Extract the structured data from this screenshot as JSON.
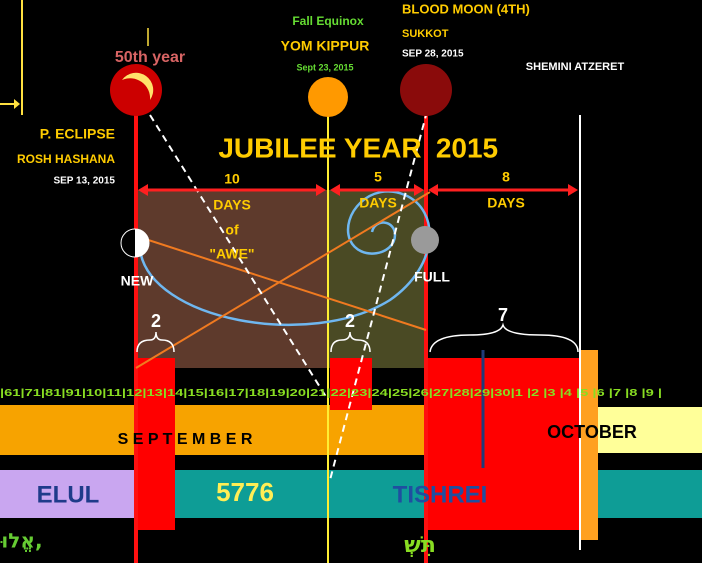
{
  "top": {
    "fifty": "50th year",
    "equinox": "Fall Equinox",
    "yom_kippur": "YOM KIPPUR",
    "yk_date": "Sept 23, 2015",
    "blood_moon": "BLOOD MOON (4TH)",
    "sukkot": "SUKKOT",
    "sukkot_date": "SEP 28, 2015",
    "shemini": "SHEMINI ATZERET",
    "eclipse": "P. ECLIPSE",
    "rosh": "ROSH HASHANA",
    "rosh_date": "SEP 13, 2015"
  },
  "title": {
    "jubilee": "JUBILEE YEAR",
    "year": "2015"
  },
  "spans": [
    {
      "count": "10",
      "unit": "DAYS",
      "extra": [
        "of",
        "\"AWE\""
      ]
    },
    {
      "count": "5",
      "unit": "DAYS"
    },
    {
      "count": "8",
      "unit": "DAYS"
    }
  ],
  "moons": {
    "new": "NEW",
    "full": "FULL"
  },
  "brackets": [
    "2",
    "2",
    "7"
  ],
  "days": "|61|71|81|91|10|11|12|13|14|15|16|17|18|19|20|21|22|23|24|25|26|27|28|29|30|1 |2 |3 |4 |5 |6 |7 |8 |9 |",
  "months": {
    "september": "S E P T E M B E R",
    "october": "OCTOBER"
  },
  "hebrew_months": {
    "elul": "ELUL",
    "year": "5776",
    "tishrei": "TISHREI"
  },
  "hebrew": {
    "elul": "אֱלוּ,",
    "tishrei": "תִּשְׁ"
  }
}
